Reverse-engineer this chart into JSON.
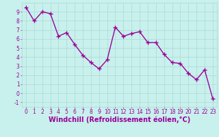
{
  "x": [
    0,
    1,
    2,
    3,
    4,
    5,
    6,
    7,
    8,
    9,
    10,
    11,
    12,
    13,
    14,
    15,
    16,
    17,
    18,
    19,
    20,
    21,
    22,
    23
  ],
  "y": [
    9.5,
    8.0,
    9.0,
    8.8,
    6.3,
    6.7,
    5.4,
    4.2,
    3.4,
    2.7,
    3.7,
    7.3,
    6.3,
    6.6,
    6.8,
    5.6,
    5.6,
    4.3,
    3.4,
    3.3,
    2.2,
    1.5,
    2.6,
    -0.6
  ],
  "line_color": "#990099",
  "marker": "+",
  "marker_size": 4,
  "linewidth": 1.0,
  "xlabel": "Windchill (Refroidissement éolien,°C)",
  "xlim": [
    -0.5,
    23.5
  ],
  "ylim": [
    -1.5,
    10.0
  ],
  "yticks": [
    -1,
    0,
    1,
    2,
    3,
    4,
    5,
    6,
    7,
    8,
    9
  ],
  "xticks": [
    0,
    1,
    2,
    3,
    4,
    5,
    6,
    7,
    8,
    9,
    10,
    11,
    12,
    13,
    14,
    15,
    16,
    17,
    18,
    19,
    20,
    21,
    22,
    23
  ],
  "background_color": "#c8f0ec",
  "grid_color": "#b0dcd8",
  "tick_color": "#990099",
  "tick_fontsize": 5.5,
  "label_fontsize": 7.0
}
